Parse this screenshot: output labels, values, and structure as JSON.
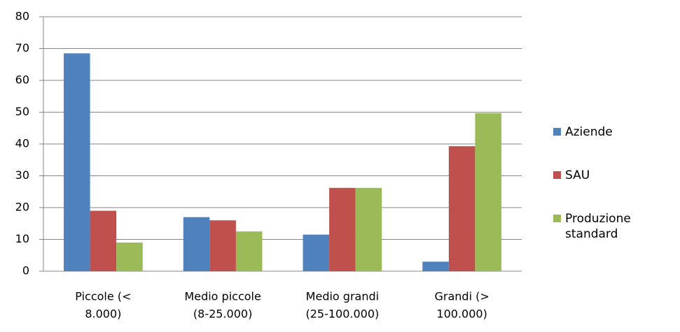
{
  "chart_data": {
    "type": "bar",
    "categories": [
      [
        "Piccole (<",
        "8.000)"
      ],
      [
        "Medio piccole",
        "(8-25.000)"
      ],
      [
        "Medio grandi",
        "(25-100.000)"
      ],
      [
        "Grandi (>",
        "100.000)"
      ]
    ],
    "series": [
      {
        "name": "Aziende",
        "color": "#4f81bd",
        "values": [
          68.5,
          17,
          11.5,
          3
        ]
      },
      {
        "name": "SAU",
        "color": "#c0504d",
        "values": [
          19,
          16,
          26.2,
          39.3
        ]
      },
      {
        "name": "Produzione standard",
        "color": "#9bbb59",
        "values": [
          9,
          12.5,
          26.2,
          49.7
        ]
      }
    ],
    "ylim": [
      0,
      80
    ],
    "yticks": [
      0,
      10,
      20,
      30,
      40,
      50,
      60,
      70,
      80
    ],
    "grid": true,
    "legend": "right"
  }
}
